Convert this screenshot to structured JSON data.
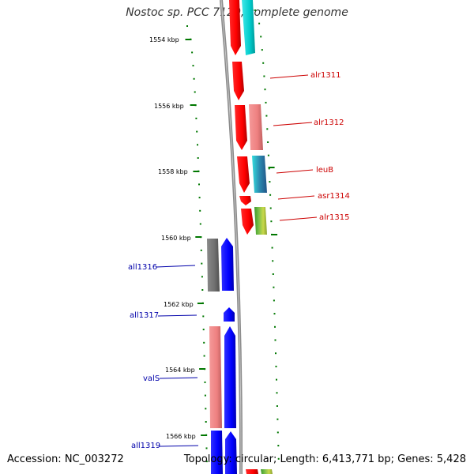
{
  "title": "Nostoc sp. PCC 7120, complete genome",
  "footer": {
    "accession": "Accession: NC_003272",
    "summary": "Topology: circular; Length: 6,413,771 bp; Genes: 5,428"
  },
  "colors": {
    "forward_label": "#cc0000",
    "reverse_label": "#0000aa",
    "backbone": "#888888",
    "ticks": "#007700"
  },
  "chart_data": {
    "type": "genome-map",
    "scale_unit": "kbp",
    "scale_labels": [
      "1554 kbp",
      "1556 kbp",
      "1558 kbp",
      "1560 kbp",
      "1562 kbp",
      "1564 kbp",
      "1566 kbp"
    ],
    "forward_genes": [
      {
        "label": "",
        "color": "red"
      },
      {
        "label": "",
        "color": "cyan"
      },
      {
        "label": "alr1311",
        "color": "red"
      },
      {
        "label": "alr1312",
        "color": "red"
      },
      {
        "label": "alr1312",
        "color": "lightcoral"
      },
      {
        "label": "leuB",
        "color": "red"
      },
      {
        "label": "leuB",
        "color": "cyan"
      },
      {
        "label": "asr1314",
        "color": "red"
      },
      {
        "label": "alr1315",
        "color": "red"
      },
      {
        "label": "alr1315",
        "color": "olive"
      }
    ],
    "reverse_genes": [
      {
        "label": "all1316",
        "color": "gray"
      },
      {
        "label": "all1316",
        "color": "blue"
      },
      {
        "label": "all1317",
        "color": "blue"
      },
      {
        "label": "valS",
        "color": "lightcoral"
      },
      {
        "label": "valS",
        "color": "blue"
      },
      {
        "label": "all1319",
        "color": "blue"
      }
    ],
    "gene_labels": {
      "forward": [
        "alr1311",
        "alr1312",
        "leuB",
        "asr1314",
        "alr1315"
      ],
      "reverse": [
        "all1316",
        "all1317",
        "valS",
        "all1319"
      ]
    }
  }
}
